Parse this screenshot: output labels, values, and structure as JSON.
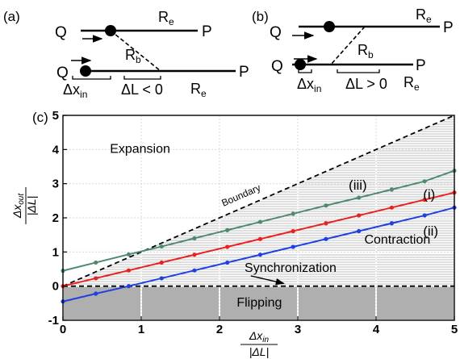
{
  "panels": {
    "a": {
      "label": "(a)",
      "top_line": {
        "left_label": "Q",
        "right_label": "P",
        "rod_label": "R",
        "rod_sub": "e"
      },
      "bottom_line": {
        "left_label": "Q",
        "right_label": "P",
        "rod_label": "R",
        "rod_sub": "e"
      },
      "diagonal": {
        "label": "R",
        "sub": "b"
      },
      "dx_label": "Δx",
      "dx_sub": "in",
      "dl_label": "ΔL < 0"
    },
    "b": {
      "label": "(b)",
      "top_line": {
        "left_label": "Q",
        "right_label": "P",
        "rod_label": "R",
        "rod_sub": "e"
      },
      "bottom_line": {
        "left_label": "Q",
        "right_label": "P",
        "rod_label": "R",
        "rod_sub": "e"
      },
      "diagonal": {
        "label": "R",
        "sub": "b"
      },
      "dx_label": "Δx",
      "dx_sub": "in",
      "dl_label": "ΔL > 0"
    }
  },
  "chart_data": {
    "type": "line",
    "panel_label": "(c)",
    "xlim": [
      0,
      5
    ],
    "ylim": [
      -1,
      5
    ],
    "x_ticks": [
      0,
      1,
      2,
      3,
      4,
      5
    ],
    "y_ticks": [
      -1,
      0,
      1,
      2,
      3,
      4,
      5
    ],
    "grid": true,
    "xlabel": {
      "numerator": "Δx",
      "numerator_sub": "in",
      "denominator": "|ΔL|"
    },
    "ylabel": {
      "numerator": "Δx",
      "numerator_sub": "out",
      "denominator": "|ΔL|"
    },
    "region_labels": {
      "expansion": "Expansion",
      "contraction": "Contraction",
      "flipping": "Flipping",
      "synchronization": "Synchronization",
      "boundary": "Boundary"
    },
    "series": [
      {
        "name": "(iii)",
        "color": "#4e8a6e",
        "x": [
          0,
          0.42,
          0.84,
          1.26,
          1.68,
          2.1,
          2.52,
          2.94,
          3.36,
          3.78,
          4.2,
          4.62,
          5.0
        ],
        "y": [
          0.45,
          0.69,
          0.93,
          1.16,
          1.4,
          1.64,
          1.88,
          2.12,
          2.36,
          2.59,
          2.83,
          3.07,
          3.38
        ]
      },
      {
        "name": "(i)",
        "color": "#e8201f",
        "x": [
          0,
          0.42,
          0.84,
          1.26,
          1.68,
          2.1,
          2.52,
          2.94,
          3.36,
          3.78,
          4.2,
          4.62,
          5.0
        ],
        "y": [
          0.0,
          0.23,
          0.46,
          0.69,
          0.92,
          1.15,
          1.38,
          1.61,
          1.84,
          2.07,
          2.3,
          2.53,
          2.74
        ]
      },
      {
        "name": "(ii)",
        "color": "#1f3fe0",
        "x": [
          0,
          0.42,
          0.84,
          1.26,
          1.68,
          2.1,
          2.52,
          2.94,
          3.36,
          3.78,
          4.2,
          4.62,
          5.0
        ],
        "y": [
          -0.45,
          -0.22,
          0.0,
          0.23,
          0.46,
          0.69,
          0.92,
          1.15,
          1.38,
          1.61,
          1.84,
          2.07,
          2.3
        ]
      }
    ],
    "boundary_line": {
      "x": [
        0,
        5
      ],
      "y": [
        0,
        5
      ]
    },
    "synchronization_line": {
      "x": [
        0,
        5
      ],
      "y": [
        0,
        0
      ]
    }
  }
}
